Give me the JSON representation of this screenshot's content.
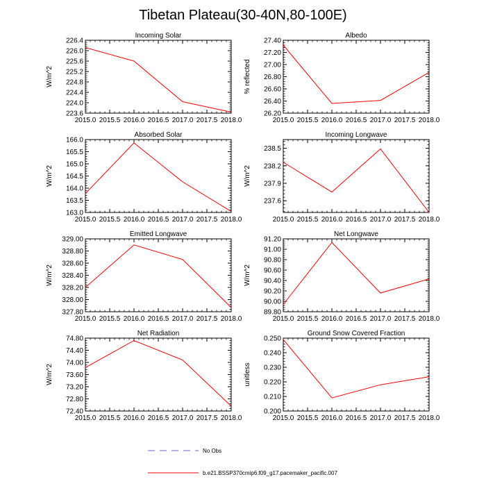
{
  "figure": {
    "title": "Tibetan Plateau(30-40N,80-100E)",
    "colors": {
      "model": "#ff0000",
      "obs": "#7a5bd6",
      "axis": "#000000"
    }
  },
  "legend": {
    "entries": [
      {
        "label": "No Obs",
        "style": "dashed",
        "color": "#7a5bd6"
      },
      {
        "label": "b.e21.BSSP370cmip6.f09_g17.pacemaker_pacific.007",
        "style": "solid",
        "color": "#ff0000"
      }
    ]
  },
  "chart_data": [
    {
      "type": "line",
      "title": "Incoming Solar",
      "ylabel": "W/m^2",
      "x": [
        2015,
        2016,
        2017,
        2018
      ],
      "series": [
        {
          "name": "b.e21.BSSP370cmip6.f09_g17.pacemaker_pacific.007",
          "values": [
            226.12,
            225.6,
            224.04,
            223.64
          ]
        }
      ],
      "xlim": [
        2015,
        2018
      ],
      "xticks": [
        "2015.0",
        "2015.5",
        "2016.0",
        "2016.5",
        "2017.0",
        "2017.5",
        "2018.0"
      ],
      "ylim": [
        223.6,
        226.4
      ],
      "yticks": [
        "223.6",
        "224.0",
        "224.4",
        "224.8",
        "225.2",
        "225.6",
        "226.0",
        "226.4"
      ]
    },
    {
      "type": "line",
      "title": "Albedo",
      "ylabel": "% reflected",
      "x": [
        2015,
        2016,
        2017,
        2018
      ],
      "series": [
        {
          "name": "b.e21.BSSP370cmip6.f09_g17.pacemaker_pacific.007",
          "values": [
            27.32,
            26.36,
            26.41,
            26.87
          ]
        }
      ],
      "xlim": [
        2015,
        2018
      ],
      "xticks": [
        "2015.0",
        "2015.5",
        "2016.0",
        "2016.5",
        "2017.0",
        "2017.5",
        "2018.0"
      ],
      "ylim": [
        26.2,
        27.4
      ],
      "yticks": [
        "26.20",
        "26.40",
        "26.60",
        "26.80",
        "27.00",
        "27.20",
        "27.40"
      ]
    },
    {
      "type": "line",
      "title": "Absorbed Solar",
      "ylabel": "W/m^2",
      "x": [
        2015,
        2016,
        2017,
        2018
      ],
      "series": [
        {
          "name": "b.e21.BSSP370cmip6.f09_g17.pacemaker_pacific.007",
          "values": [
            163.78,
            165.86,
            164.26,
            163.04
          ]
        }
      ],
      "xlim": [
        2015,
        2018
      ],
      "xticks": [
        "2015.0",
        "2015.5",
        "2016.0",
        "2016.5",
        "2017.0",
        "2017.5",
        "2018.0"
      ],
      "ylim": [
        163.0,
        166.0
      ],
      "yticks": [
        "163.0",
        "163.5",
        "164.0",
        "164.5",
        "165.0",
        "165.5",
        "166.0"
      ]
    },
    {
      "type": "line",
      "title": "Incoming Longwave",
      "ylabel": "W/m^2",
      "x": [
        2015,
        2016,
        2017,
        2018
      ],
      "series": [
        {
          "name": "b.e21.BSSP370cmip6.f09_g17.pacemaker_pacific.007",
          "values": [
            238.26,
            237.75,
            238.49,
            237.4
          ]
        }
      ],
      "xlim": [
        2015,
        2018
      ],
      "xticks": [
        "2015.0",
        "2015.5",
        "2016.0",
        "2016.5",
        "2017.0",
        "2017.5",
        "2018.0"
      ],
      "ylim": [
        237.4,
        238.65
      ],
      "yticks": [
        "237.6",
        "237.9",
        "238.2",
        "238.5"
      ]
    },
    {
      "type": "line",
      "title": "Emitted Longwave",
      "ylabel": "W/m^2",
      "x": [
        2015,
        2016,
        2017,
        2018
      ],
      "series": [
        {
          "name": "b.e21.BSSP370cmip6.f09_g17.pacemaker_pacific.007",
          "values": [
            328.2,
            328.9,
            328.66,
            327.87
          ]
        }
      ],
      "xlim": [
        2015,
        2018
      ],
      "xticks": [
        "2015.0",
        "2015.5",
        "2016.0",
        "2016.5",
        "2017.0",
        "2017.5",
        "2018.0"
      ],
      "ylim": [
        327.8,
        329.0
      ],
      "yticks": [
        "327.80",
        "328.00",
        "328.20",
        "328.40",
        "328.60",
        "328.80",
        "329.00"
      ]
    },
    {
      "type": "line",
      "title": "Net Longwave",
      "ylabel": "W/m^2",
      "x": [
        2015,
        2016,
        2017,
        2018
      ],
      "series": [
        {
          "name": "b.e21.BSSP370cmip6.f09_g17.pacemaker_pacific.007",
          "values": [
            89.94,
            91.13,
            90.16,
            90.43
          ]
        }
      ],
      "xlim": [
        2015,
        2018
      ],
      "xticks": [
        "2015.0",
        "2015.5",
        "2016.0",
        "2016.5",
        "2017.0",
        "2017.5",
        "2018.0"
      ],
      "ylim": [
        89.8,
        91.2
      ],
      "yticks": [
        "89.80",
        "90.00",
        "90.20",
        "90.40",
        "90.60",
        "90.80",
        "91.00",
        "91.20"
      ]
    },
    {
      "type": "line",
      "title": "Net Radiation",
      "ylabel": "W/m^2",
      "x": [
        2015,
        2016,
        2017,
        2018
      ],
      "series": [
        {
          "name": "b.e21.BSSP370cmip6.f09_g17.pacemaker_pacific.007",
          "values": [
            73.83,
            74.72,
            74.08,
            72.56
          ]
        }
      ],
      "xlim": [
        2015,
        2018
      ],
      "xticks": [
        "2015.0",
        "2015.5",
        "2016.0",
        "2016.5",
        "2017.0",
        "2017.5",
        "2018.0"
      ],
      "ylim": [
        72.4,
        74.8
      ],
      "yticks": [
        "72.40",
        "72.80",
        "73.20",
        "73.60",
        "74.00",
        "74.40",
        "74.80"
      ]
    },
    {
      "type": "line",
      "title": "Ground Snow Covered Fraction",
      "ylabel": "unitless",
      "x": [
        2015,
        2016,
        2017,
        2018
      ],
      "series": [
        {
          "name": "b.e21.BSSP370cmip6.f09_g17.pacemaker_pacific.007",
          "values": [
            0.249,
            0.209,
            0.218,
            0.2235
          ]
        }
      ],
      "xlim": [
        2015,
        2018
      ],
      "xticks": [
        "2015.0",
        "2015.5",
        "2016.0",
        "2016.5",
        "2017.0",
        "2017.5",
        "2018.0"
      ],
      "ylim": [
        0.2,
        0.25
      ],
      "yticks": [
        "0.200",
        "0.210",
        "0.220",
        "0.230",
        "0.240",
        "0.250"
      ]
    }
  ]
}
